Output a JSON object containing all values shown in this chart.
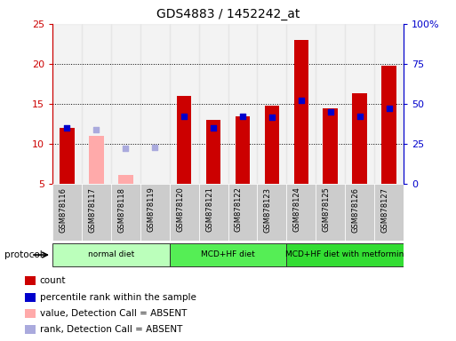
{
  "title": "GDS4883 / 1452242_at",
  "samples": [
    "GSM878116",
    "GSM878117",
    "GSM878118",
    "GSM878119",
    "GSM878120",
    "GSM878121",
    "GSM878122",
    "GSM878123",
    "GSM878124",
    "GSM878125",
    "GSM878126",
    "GSM878127"
  ],
  "count_values": [
    12.0,
    null,
    null,
    null,
    16.0,
    13.0,
    13.5,
    14.8,
    23.0,
    14.5,
    16.3,
    19.8
  ],
  "count_absent": [
    null,
    11.0,
    6.2,
    null,
    null,
    null,
    null,
    null,
    null,
    null,
    null,
    null
  ],
  "rank_present": [
    12.0,
    null,
    null,
    null,
    13.5,
    12.0,
    13.5,
    13.3,
    15.5,
    14.0,
    13.5,
    14.5
  ],
  "rank_absent": [
    null,
    11.8,
    9.5,
    9.6,
    null,
    null,
    null,
    null,
    null,
    null,
    null,
    null
  ],
  "protocols": [
    {
      "label": "normal diet",
      "start": 0,
      "end": 4,
      "color": "#bbffbb"
    },
    {
      "label": "MCD+HF diet",
      "start": 4,
      "end": 8,
      "color": "#55ee55"
    },
    {
      "label": "MCD+HF diet with metformin",
      "start": 8,
      "end": 12,
      "color": "#33dd33"
    }
  ],
  "ylim_left": [
    5,
    25
  ],
  "ylim_right": [
    0,
    100
  ],
  "yticks_left": [
    5,
    10,
    15,
    20,
    25
  ],
  "ytick_labels_left": [
    "5",
    "10",
    "15",
    "20",
    "25"
  ],
  "yticks_right": [
    0,
    25,
    50,
    75,
    100
  ],
  "ytick_labels_right": [
    "0",
    "25",
    "50",
    "75",
    "100%"
  ],
  "bar_width": 0.5,
  "bar_color_present": "#cc0000",
  "bar_color_absent": "#ffaaaa",
  "dot_color_present": "#0000cc",
  "dot_color_absent": "#aaaadd",
  "bg_color": "#ffffff",
  "left_axis_color": "#cc0000",
  "right_axis_color": "#0000cc",
  "protocol_arrow_label": "protocol",
  "legend_items": [
    {
      "label": "count",
      "color": "#cc0000"
    },
    {
      "label": "percentile rank within the sample",
      "color": "#0000cc"
    },
    {
      "label": "value, Detection Call = ABSENT",
      "color": "#ffaaaa"
    },
    {
      "label": "rank, Detection Call = ABSENT",
      "color": "#aaaadd"
    }
  ]
}
